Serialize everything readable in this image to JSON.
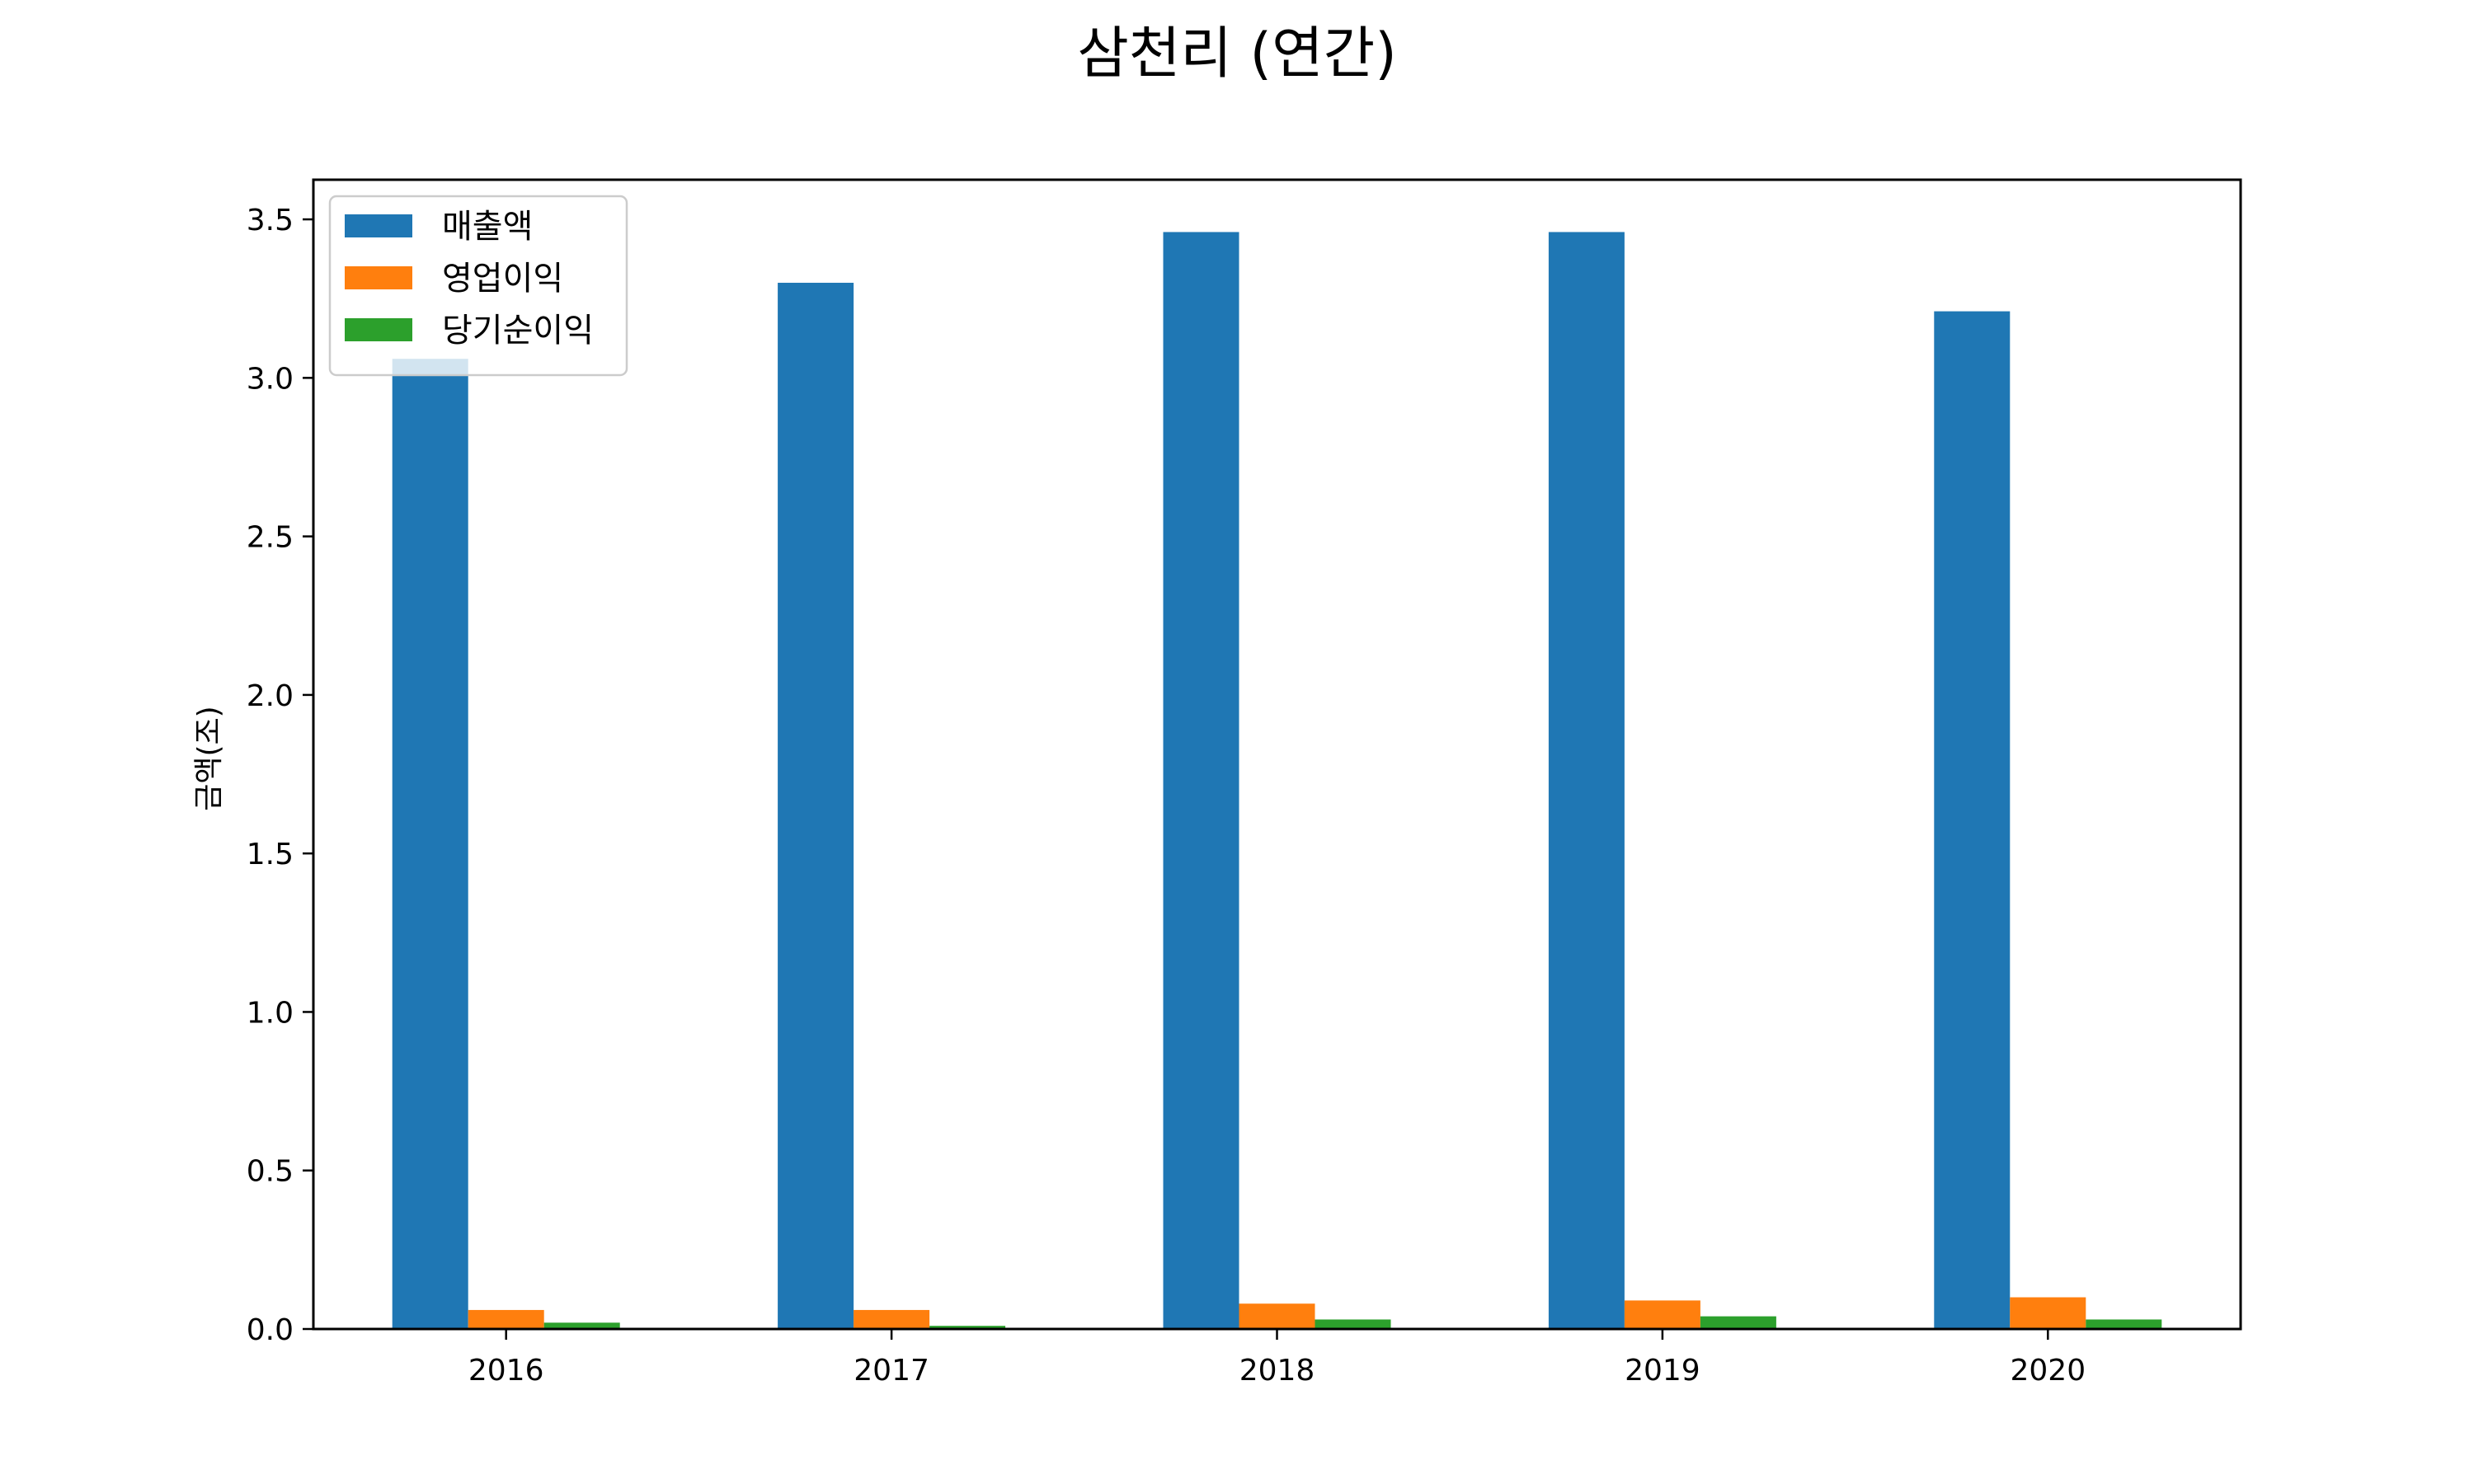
{
  "chart_data": {
    "type": "bar",
    "title": "삼천리 (연간)",
    "xlabel": "",
    "ylabel": "금액(조)",
    "categories": [
      "2016",
      "2017",
      "2018",
      "2019",
      "2020"
    ],
    "series": [
      {
        "name": "매출액",
        "color": "#1f77b4",
        "values": [
          3.06,
          3.3,
          3.46,
          3.46,
          3.21
        ]
      },
      {
        "name": "영업이익",
        "color": "#ff7f0e",
        "values": [
          0.06,
          0.06,
          0.08,
          0.09,
          0.1
        ]
      },
      {
        "name": "당기순이익",
        "color": "#2ca02c",
        "values": [
          0.02,
          0.01,
          0.03,
          0.04,
          0.03
        ]
      }
    ],
    "ylim": [
      0,
      3.625
    ],
    "yticks": [
      "0.0",
      "0.5",
      "1.0",
      "1.5",
      "2.0",
      "2.5",
      "3.0",
      "3.5"
    ],
    "grid": false,
    "legend_position": "top-left"
  }
}
